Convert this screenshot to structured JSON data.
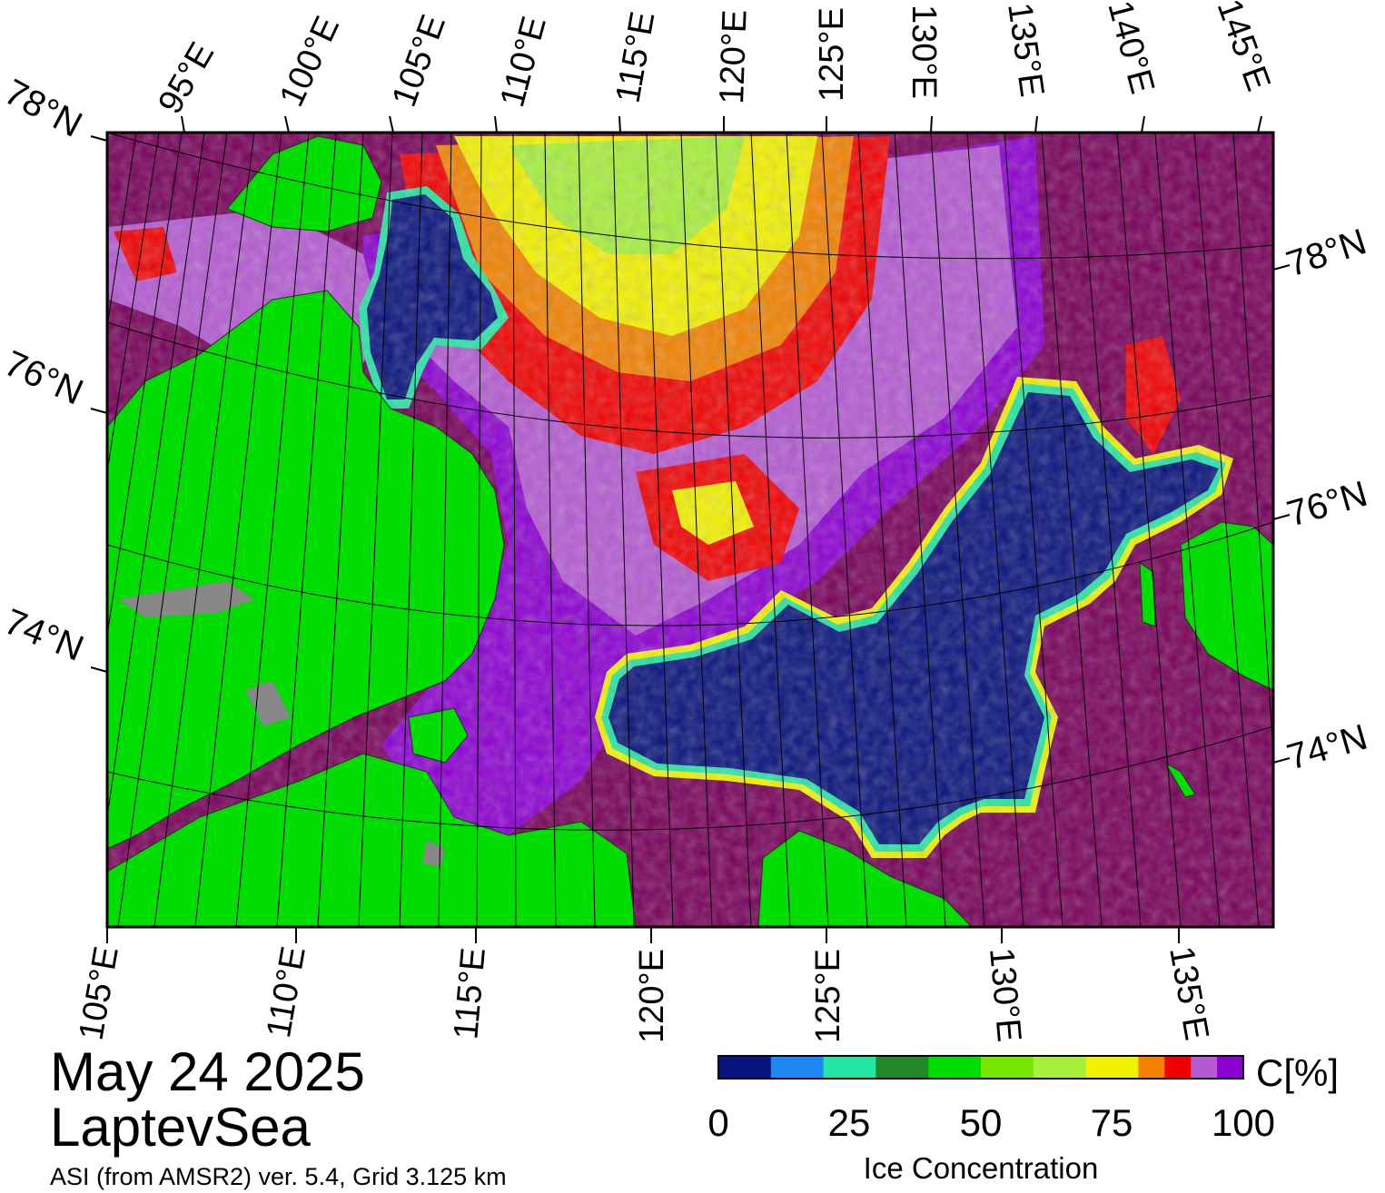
{
  "map": {
    "date": "May 24 2025",
    "region": "LaptevSea",
    "product": "ASI (from AMSR2) ver. 5.4,  Grid 3.125 km",
    "colors": {
      "land": "#00dd00",
      "land_ice": "#888888",
      "frame": "#000000"
    },
    "top_lon_labels": [
      "95°E",
      "100°E",
      "105°E",
      "110°E",
      "115°E",
      "120°E",
      "125°E",
      "130°E",
      "135°E",
      "140°E",
      "145°E"
    ],
    "bottom_lon_labels": [
      "105°E",
      "110°E",
      "115°E",
      "120°E",
      "125°E",
      "130°E",
      "135°E"
    ],
    "left_lat_labels": [
      "78°N",
      "76°N",
      "74°N"
    ],
    "right_lat_labels": [
      "78°N",
      "76°N",
      "74°N"
    ]
  },
  "colorbar": {
    "unit": "C[%]",
    "title": "Ice Concentration",
    "ticks": [
      "0",
      "25",
      "50",
      "75",
      "100"
    ],
    "bins": [
      {
        "from": 0,
        "to": 10,
        "color": "#08137c"
      },
      {
        "from": 10,
        "to": 20,
        "color": "#1e88f0"
      },
      {
        "from": 20,
        "to": 30,
        "color": "#23e6a4"
      },
      {
        "from": 30,
        "to": 40,
        "color": "#23872a"
      },
      {
        "from": 40,
        "to": 50,
        "color": "#00dd00"
      },
      {
        "from": 50,
        "to": 60,
        "color": "#76e600"
      },
      {
        "from": 60,
        "to": 70,
        "color": "#a6f03c"
      },
      {
        "from": 70,
        "to": 80,
        "color": "#f2f200"
      },
      {
        "from": 80,
        "to": 85,
        "color": "#f28200"
      },
      {
        "from": 85,
        "to": 90,
        "color": "#f20000"
      },
      {
        "from": 90,
        "to": 95,
        "color": "#b45ad2"
      },
      {
        "from": 95,
        "to": 100,
        "color": "#8c00d2"
      }
    ],
    "open_water_color": "#08137c",
    "pack_ice_color": "#78005a"
  }
}
